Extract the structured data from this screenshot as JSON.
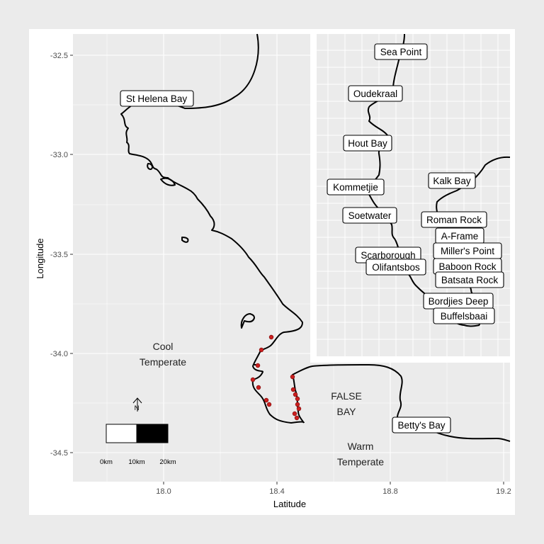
{
  "axes": {
    "x_title": "Latitude",
    "y_title": "Longitude",
    "x_ticks": [
      "18.0",
      "18.4",
      "18.8",
      "19.2"
    ],
    "y_ticks": [
      "-32.5",
      "-33.0",
      "-33.5",
      "-34.0",
      "-34.5"
    ]
  },
  "region_labels": {
    "cool_line1": "Cool",
    "cool_line2": "Temperate",
    "false_line1": "FALSE",
    "false_line2": "BAY",
    "warm_line1": "Warm",
    "warm_line2": "Temperate"
  },
  "site_labels": [
    "St Helena Bay",
    "Sea Point",
    "Oudekraal",
    "Hout Bay",
    "Kommetjie",
    "Soetwater",
    "Scarborough",
    "Olifantsbos",
    "Kalk Bay",
    "Roman Rock",
    "A-Frame",
    "Miller's Point",
    "Baboon Rock",
    "Batsata Rock",
    "Bordjies Deep",
    "Buffelsbaai",
    "Betty's Bay"
  ],
  "north_arrow": "N",
  "scale_bar": [
    "0km",
    "10km",
    "20km"
  ],
  "colors": {
    "panel": "#ebebeb",
    "grid": "#ffffff",
    "coastline": "#000000",
    "site_point": "#cc1f1f"
  }
}
